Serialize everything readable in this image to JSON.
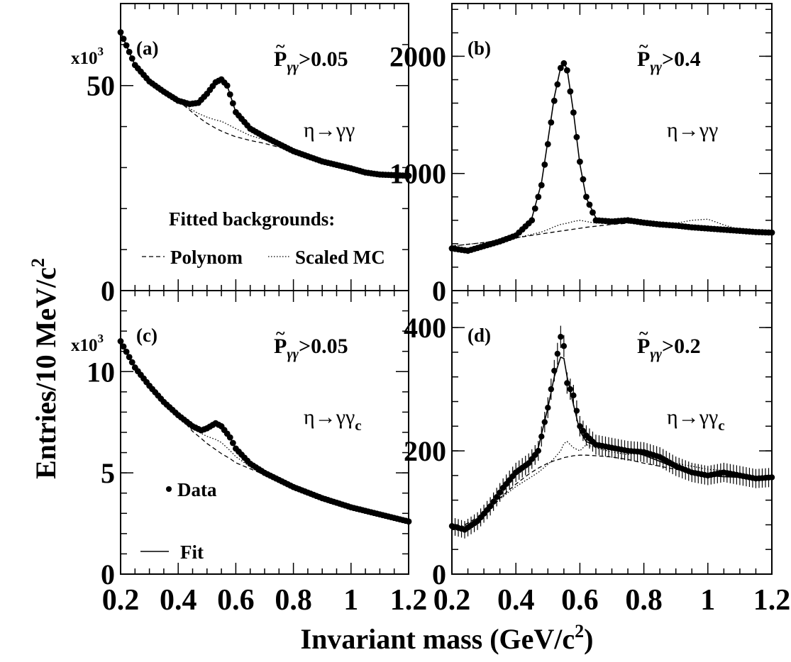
{
  "figure": {
    "ylabel": "Entries/10 MeV/c",
    "ylabel_sup": "2",
    "xlabel": "Invariant mass (GeV/c",
    "xlabel_sup": "2",
    "xlabel_close": ")",
    "x_ticks": [
      "0.2",
      "0.4",
      "0.6",
      "0.8",
      "1",
      "1.2"
    ],
    "legend_a": {
      "title": "Fitted backgrounds:",
      "poly": "Polynom",
      "mc": "Scaled MC"
    },
    "legend_c": {
      "data": "Data",
      "fit": "Fit"
    }
  },
  "chart_data": [
    {
      "type": "scatter",
      "panel": "(a)",
      "multiplier": "x10",
      "multiplier_exp": "3",
      "cut_main": "P",
      "cut_sub": "γγ",
      "cut_rest": ">0.05",
      "reaction": "η→γγ",
      "reaction_sub": "",
      "xlim": [
        0.2,
        1.2
      ],
      "ylim": [
        0,
        70
      ],
      "yticks": [
        {
          "v": 0,
          "label": "0"
        },
        {
          "v": 50,
          "label": "50"
        }
      ],
      "x": [
        0.2,
        0.25,
        0.3,
        0.35,
        0.4,
        0.44,
        0.47,
        0.5,
        0.53,
        0.55,
        0.57,
        0.6,
        0.65,
        0.7,
        0.8,
        0.9,
        1.0,
        1.05,
        1.1,
        1.2
      ],
      "data": [
        63,
        55,
        51,
        48.5,
        46.3,
        45.5,
        45.8,
        48,
        50.8,
        51.5,
        50,
        43.5,
        39.5,
        37.5,
        34,
        31.5,
        29.8,
        28.8,
        28.3,
        28
      ],
      "fit": [
        63,
        55,
        51,
        48.5,
        46.3,
        45.5,
        45.8,
        48,
        50.8,
        51.5,
        50,
        43.5,
        39.5,
        37.5,
        34,
        31.5,
        29.8,
        28.8,
        28.3,
        28
      ],
      "poly": [
        63,
        55,
        51,
        48.5,
        46.3,
        44,
        42.3,
        40.8,
        39.6,
        38.9,
        38.3,
        37.5,
        36.6,
        35.9,
        34,
        31.5,
        29.8,
        28.8,
        28.3,
        28
      ],
      "mc": [
        63,
        55,
        51,
        48.5,
        46.3,
        44.4,
        43.2,
        42.3,
        41.6,
        41.3,
        40.6,
        39.5,
        37.8,
        36.8,
        34,
        31.5,
        29.8,
        28.8,
        28.3,
        28
      ],
      "errors": false
    },
    {
      "type": "scatter",
      "panel": "(b)",
      "multiplier": "",
      "multiplier_exp": "",
      "cut_main": "P",
      "cut_sub": "γγ",
      "cut_rest": ">0.4",
      "reaction": "η→γγ",
      "reaction_sub": "",
      "xlim": [
        0.2,
        1.2
      ],
      "ylim": [
        0,
        2450
      ],
      "yticks": [
        {
          "v": 0,
          "label": "0"
        },
        {
          "v": 1000,
          "label": "1000"
        },
        {
          "v": 2000,
          "label": "2000"
        }
      ],
      "x": [
        0.2,
        0.25,
        0.3,
        0.35,
        0.4,
        0.45,
        0.48,
        0.5,
        0.52,
        0.54,
        0.55,
        0.56,
        0.58,
        0.6,
        0.62,
        0.65,
        0.7,
        0.75,
        0.8,
        0.85,
        0.9,
        0.95,
        1.0,
        1.05,
        1.1,
        1.15,
        1.2
      ],
      "data": [
        360,
        340,
        380,
        420,
        470,
        600,
        900,
        1250,
        1620,
        1900,
        1940,
        1880,
        1520,
        1100,
        800,
        600,
        590,
        600,
        580,
        565,
        555,
        540,
        530,
        520,
        510,
        500,
        495
      ],
      "fit": [
        350,
        350,
        380,
        420,
        480,
        620,
        920,
        1280,
        1650,
        1905,
        1945,
        1890,
        1520,
        1080,
        790,
        620,
        585,
        595,
        580,
        565,
        555,
        540,
        530,
        520,
        510,
        500,
        495
      ],
      "poly": [
        380,
        395,
        410,
        430,
        450,
        472,
        484,
        492,
        500,
        508,
        512,
        516,
        524,
        532,
        540,
        550,
        565,
        575,
        580,
        570,
        560,
        550,
        535,
        520,
        510,
        500,
        495
      ],
      "mc": [
        380,
        395,
        410,
        430,
        450,
        480,
        500,
        520,
        545,
        565,
        570,
        575,
        590,
        600,
        590,
        575,
        580,
        590,
        585,
        570,
        575,
        600,
        610,
        560,
        520,
        500,
        495
      ],
      "errors": false
    },
    {
      "type": "scatter",
      "panel": "(c)",
      "multiplier": "x10",
      "multiplier_exp": "3",
      "cut_main": "P",
      "cut_sub": "γγ",
      "cut_rest": ">0.05",
      "reaction": "η→γγ",
      "reaction_sub": "c",
      "xlim": [
        0.2,
        1.2
      ],
      "ylim": [
        0,
        14
      ],
      "yticks": [
        {
          "v": 0,
          "label": "0"
        },
        {
          "v": 5,
          "label": "5"
        },
        {
          "v": 10,
          "label": "10"
        }
      ],
      "x": [
        0.2,
        0.25,
        0.3,
        0.35,
        0.4,
        0.45,
        0.48,
        0.5,
        0.53,
        0.55,
        0.58,
        0.6,
        0.65,
        0.7,
        0.8,
        0.9,
        1.0,
        1.1,
        1.2
      ],
      "data": [
        11.5,
        10.2,
        9.3,
        8.5,
        7.85,
        7.3,
        7.1,
        7.2,
        7.45,
        7.3,
        6.75,
        6.2,
        5.45,
        5.0,
        4.3,
        3.75,
        3.3,
        2.95,
        2.6
      ],
      "fit": [
        11.5,
        10.2,
        9.3,
        8.5,
        7.85,
        7.3,
        7.1,
        7.2,
        7.45,
        7.3,
        6.75,
        6.2,
        5.45,
        5.0,
        4.3,
        3.75,
        3.3,
        2.95,
        2.6
      ],
      "poly": [
        11.5,
        10.2,
        9.3,
        8.5,
        7.85,
        7.05,
        6.7,
        6.45,
        6.15,
        5.95,
        5.7,
        5.5,
        5.2,
        4.9,
        4.3,
        3.75,
        3.3,
        2.95,
        2.6
      ],
      "mc": [
        11.5,
        10.2,
        9.3,
        8.5,
        7.85,
        7.2,
        6.95,
        6.8,
        6.65,
        6.5,
        6.1,
        5.8,
        5.3,
        5.0,
        4.3,
        3.75,
        3.3,
        2.95,
        2.6
      ],
      "errors": false
    },
    {
      "type": "scatter",
      "panel": "(d)",
      "multiplier": "",
      "multiplier_exp": "",
      "cut_main": "P",
      "cut_sub": "γγ",
      "cut_rest": ">0.2",
      "reaction": "η→γγ",
      "reaction_sub": "c",
      "xlim": [
        0.2,
        1.2
      ],
      "ylim": [
        0,
        460
      ],
      "yticks": [
        {
          "v": 0,
          "label": "0"
        },
        {
          "v": 200,
          "label": "200"
        },
        {
          "v": 400,
          "label": "400"
        }
      ],
      "x": [
        0.2,
        0.24,
        0.28,
        0.32,
        0.36,
        0.4,
        0.44,
        0.47,
        0.5,
        0.52,
        0.54,
        0.55,
        0.56,
        0.58,
        0.6,
        0.62,
        0.65,
        0.7,
        0.75,
        0.8,
        0.85,
        0.9,
        0.95,
        1.0,
        1.05,
        1.1,
        1.15,
        1.2
      ],
      "data": [
        78,
        72,
        86,
        110,
        140,
        165,
        180,
        200,
        270,
        330,
        385,
        370,
        310,
        290,
        240,
        225,
        210,
        205,
        200,
        198,
        190,
        175,
        165,
        160,
        165,
        160,
        155,
        157
      ],
      "fit": [
        72,
        75,
        88,
        112,
        140,
        163,
        182,
        205,
        270,
        320,
        352,
        350,
        320,
        275,
        232,
        215,
        208,
        205,
        200,
        193,
        183,
        172,
        165,
        160,
        158,
        157,
        156,
        156
      ],
      "poly": [
        72,
        80,
        92,
        110,
        128,
        146,
        162,
        172,
        180,
        184,
        187,
        189,
        190,
        192,
        193,
        193,
        192,
        190,
        186,
        180,
        175,
        170,
        166,
        162,
        160,
        158,
        157,
        156
      ],
      "mc": [
        72,
        78,
        90,
        108,
        126,
        142,
        155,
        165,
        178,
        188,
        200,
        212,
        215,
        205,
        200,
        210,
        205,
        198,
        194,
        200,
        190,
        180,
        175,
        170,
        168,
        162,
        158,
        156
      ],
      "errors": true
    }
  ]
}
